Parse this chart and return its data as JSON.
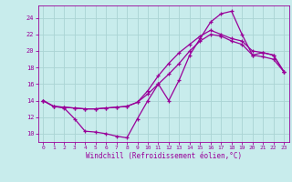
{
  "title": "",
  "xlabel": "Windchill (Refroidissement éolien,°C)",
  "ylabel": "",
  "bg_color": "#c8ecec",
  "grid_color": "#aad4d4",
  "line_color": "#990099",
  "xlim": [
    -0.5,
    23.5
  ],
  "ylim": [
    9,
    25.5
  ],
  "xticks": [
    0,
    1,
    2,
    3,
    4,
    5,
    6,
    7,
    8,
    9,
    10,
    11,
    12,
    13,
    14,
    15,
    16,
    17,
    18,
    19,
    20,
    21,
    22,
    23
  ],
  "yticks": [
    10,
    12,
    14,
    16,
    18,
    20,
    22,
    24
  ],
  "series1_x": [
    0,
    1,
    2,
    3,
    4,
    5,
    6,
    7,
    8,
    9,
    10,
    11,
    12,
    13,
    14,
    15,
    16,
    17,
    18,
    19,
    20,
    21,
    22,
    23
  ],
  "series1_y": [
    14.0,
    13.3,
    13.1,
    11.8,
    10.3,
    10.2,
    10.0,
    9.7,
    9.5,
    11.8,
    14.0,
    16.0,
    14.0,
    16.5,
    19.5,
    21.5,
    23.5,
    24.5,
    24.8,
    22.0,
    19.5,
    19.8,
    19.5,
    17.5
  ],
  "series2_x": [
    0,
    1,
    2,
    3,
    4,
    5,
    6,
    7,
    8,
    9,
    10,
    11,
    12,
    13,
    14,
    15,
    16,
    17,
    18,
    19,
    20,
    21,
    22,
    23
  ],
  "series2_y": [
    14.0,
    13.3,
    13.2,
    13.1,
    13.0,
    13.0,
    13.1,
    13.2,
    13.3,
    13.8,
    15.2,
    17.0,
    18.5,
    19.8,
    20.8,
    21.8,
    22.5,
    22.0,
    21.5,
    21.2,
    20.0,
    19.8,
    19.5,
    17.5
  ],
  "series3_x": [
    0,
    1,
    2,
    3,
    4,
    5,
    6,
    7,
    8,
    9,
    10,
    11,
    12,
    13,
    14,
    15,
    16,
    17,
    18,
    19,
    20,
    21,
    22,
    23
  ],
  "series3_y": [
    14.0,
    13.3,
    13.2,
    13.1,
    13.0,
    13.0,
    13.1,
    13.2,
    13.3,
    13.8,
    14.8,
    16.0,
    17.2,
    18.5,
    20.0,
    21.2,
    22.0,
    21.8,
    21.2,
    20.8,
    19.5,
    19.3,
    19.0,
    17.5
  ]
}
